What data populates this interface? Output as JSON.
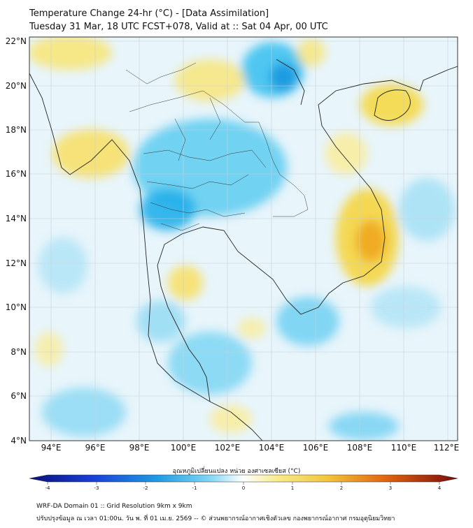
{
  "header": {
    "title_line1": "Temperature Change 24-hr (°C) - [Data Assimilation]",
    "title_line2": "Tuesday 31 Mar, 18 UTC FCST+078, Valid at :: Sat 04 Apr, 00 UTC"
  },
  "map": {
    "lat_labels": [
      "22°N",
      "20°N",
      "18°N",
      "16°N",
      "14°N",
      "12°N",
      "10°N",
      "8°N",
      "6°N",
      "4°N"
    ],
    "lon_labels": [
      "94°E",
      "96°E",
      "98°E",
      "100°E",
      "102°E",
      "104°E",
      "106°E",
      "108°E",
      "110°E",
      "112°E"
    ],
    "colors": {
      "cold": "#22b8ec",
      "cool": "#bfe6f8",
      "warm": "#f5e15a",
      "hot": "#f0a51c"
    }
  },
  "colorbar": {
    "title": "อุณหภูมิเปลี่ยนแปลง หน่วย องศาเซลเซียส (°C)",
    "tick_labels": [
      "-4",
      "-3",
      "-2",
      "-1",
      "0",
      "1",
      "2",
      "3",
      "4"
    ],
    "range": [
      -4,
      4
    ]
  },
  "footer": {
    "line1": "WRF-DA Domain 01 :: Grid Resolution 9km x 9km",
    "line2": "ปรับปรุงข้อมูล ณ เวลา 01:00น. วัน พ. ที่ 01 เม.ย. 2569 -- © ส่วนพยากรณ์อากาศเชิงตัวเลข กองพยากรณ์อากาศ กรมอุตุนิยมวิทยา"
  }
}
